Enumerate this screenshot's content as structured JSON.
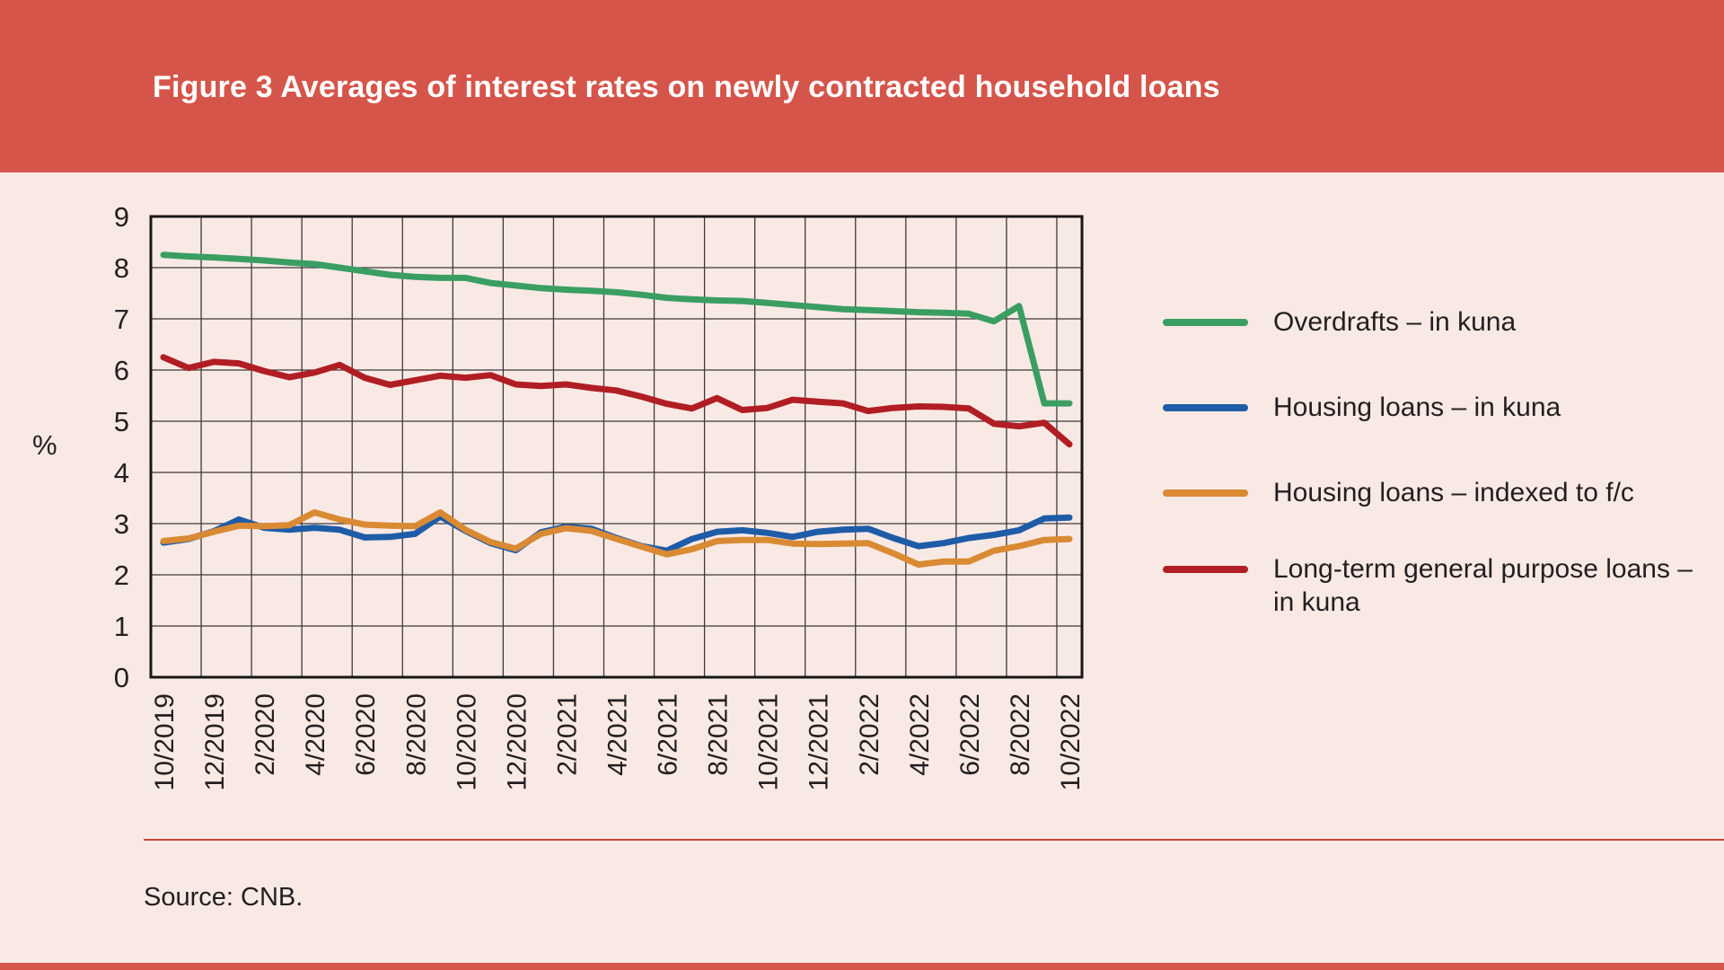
{
  "header": {
    "title": "Figure 3 Averages of interest rates on newly contracted household loans"
  },
  "source": {
    "text": "Source: CNB."
  },
  "colors": {
    "banner": "#d6554a",
    "background": "#f9e9e5",
    "grid": "#3d3a39",
    "plot_border": "#181717",
    "text": "#231f20",
    "source_rule": "#cc4636"
  },
  "chart_data": {
    "type": "line",
    "title": "Figure 3 Averages of interest rates on newly contracted household loans",
    "xlabel": "",
    "ylabel": "%",
    "ylim": [
      0,
      9
    ],
    "ytick_step": 1,
    "grid": true,
    "legend_position": "right",
    "x": [
      "10/2019",
      "11/2019",
      "12/2019",
      "1/2020",
      "2/2020",
      "3/2020",
      "4/2020",
      "5/2020",
      "6/2020",
      "7/2020",
      "8/2020",
      "9/2020",
      "10/2020",
      "11/2020",
      "12/2020",
      "1/2021",
      "2/2021",
      "3/2021",
      "4/2021",
      "5/2021",
      "6/2021",
      "7/2021",
      "8/2021",
      "9/2021",
      "10/2021",
      "11/2021",
      "12/2021",
      "1/2022",
      "2/2022",
      "3/2022",
      "4/2022",
      "5/2022",
      "6/2022",
      "7/2022",
      "8/2022",
      "9/2022",
      "10/2022"
    ],
    "xtick_labels": [
      "10/2019",
      "12/2019",
      "2/2020",
      "4/2020",
      "6/2020",
      "8/2020",
      "10/2020",
      "12/2020",
      "2/2021",
      "4/2021",
      "6/2021",
      "8/2021",
      "10/2021",
      "12/2021",
      "2/2022",
      "4/2022",
      "6/2022",
      "8/2022",
      "10/2022"
    ],
    "series": [
      {
        "name": "Overdrafts – in kuna",
        "color": "#3a9e63",
        "values": [
          8.25,
          8.22,
          8.2,
          8.17,
          8.14,
          8.1,
          8.07,
          8.0,
          7.93,
          7.86,
          7.82,
          7.8,
          7.8,
          7.7,
          7.65,
          7.6,
          7.57,
          7.55,
          7.52,
          7.47,
          7.41,
          7.38,
          7.36,
          7.35,
          7.31,
          7.27,
          7.23,
          7.19,
          7.17,
          7.15,
          7.13,
          7.12,
          7.1,
          6.95,
          7.25,
          5.35,
          5.35
        ]
      },
      {
        "name": "Housing loans – in kuna",
        "color": "#1e5ca8",
        "values": [
          2.63,
          2.7,
          2.85,
          3.08,
          2.92,
          2.88,
          2.92,
          2.88,
          2.73,
          2.74,
          2.8,
          3.14,
          2.86,
          2.62,
          2.48,
          2.83,
          2.94,
          2.9,
          2.72,
          2.56,
          2.47,
          2.7,
          2.84,
          2.87,
          2.82,
          2.74,
          2.84,
          2.88,
          2.9,
          2.72,
          2.56,
          2.62,
          2.72,
          2.78,
          2.87,
          3.1,
          3.12
        ]
      },
      {
        "name": "Housing loans – indexed to f/c",
        "color": "#d98a33",
        "values": [
          2.66,
          2.71,
          2.84,
          2.96,
          2.95,
          2.97,
          3.22,
          3.08,
          2.98,
          2.96,
          2.95,
          3.22,
          2.88,
          2.64,
          2.51,
          2.8,
          2.91,
          2.86,
          2.7,
          2.55,
          2.4,
          2.5,
          2.66,
          2.68,
          2.68,
          2.61,
          2.6,
          2.61,
          2.62,
          2.42,
          2.2,
          2.26,
          2.26,
          2.47,
          2.56,
          2.68,
          2.7
        ]
      },
      {
        "name": "Long-term general purpose loans – in kuna",
        "color": "#b01e23",
        "values": [
          6.25,
          6.04,
          6.16,
          6.13,
          5.98,
          5.86,
          5.95,
          6.1,
          5.85,
          5.71,
          5.8,
          5.89,
          5.85,
          5.9,
          5.72,
          5.69,
          5.72,
          5.65,
          5.6,
          5.48,
          5.34,
          5.25,
          5.45,
          5.22,
          5.26,
          5.42,
          5.38,
          5.35,
          5.2,
          5.26,
          5.29,
          5.28,
          5.25,
          4.95,
          4.9,
          4.97,
          4.55
        ]
      }
    ]
  }
}
